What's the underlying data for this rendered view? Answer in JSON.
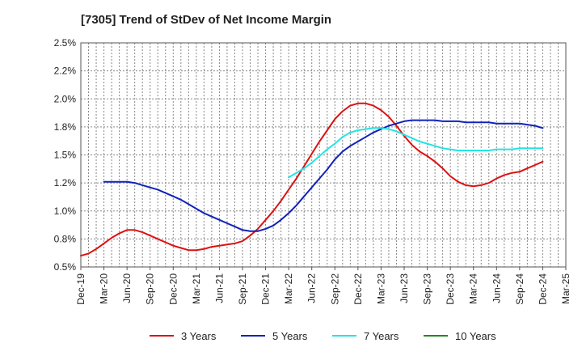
{
  "chart_data": {
    "type": "line",
    "title": "[7305]  Trend of StDev of Net Income Margin",
    "xlabel": "",
    "ylabel": "",
    "ylim": [
      0.5,
      2.5
    ],
    "y_ticks": [
      "2.5%",
      "2.2%",
      "2.0%",
      "1.8%",
      "1.5%",
      "1.2%",
      "1.0%",
      "0.8%",
      "0.5%"
    ],
    "y_tick_values": [
      2.5,
      2.25,
      2.0,
      1.75,
      1.5,
      1.25,
      1.0,
      0.75,
      0.5
    ],
    "x_ticks": [
      "Dec-19",
      "Mar-20",
      "Jun-20",
      "Sep-20",
      "Dec-20",
      "Mar-21",
      "Jun-21",
      "Sep-21",
      "Dec-21",
      "Mar-22",
      "Jun-22",
      "Sep-22",
      "Dec-22",
      "Mar-23",
      "Jun-23",
      "Sep-23",
      "Dec-23",
      "Mar-24",
      "Jun-24",
      "Sep-24",
      "Dec-24",
      "Mar-25"
    ],
    "grid": true,
    "legend_position": "bottom",
    "series": [
      {
        "name": "3 Years",
        "color": "#dd1111",
        "points": [
          [
            "Dec-19",
            0.6
          ],
          [
            "Jan-20",
            0.62
          ],
          [
            "Feb-20",
            0.66
          ],
          [
            "Mar-20",
            0.71
          ],
          [
            "Apr-20",
            0.76
          ],
          [
            "May-20",
            0.8
          ],
          [
            "Jun-20",
            0.83
          ],
          [
            "Jul-20",
            0.83
          ],
          [
            "Aug-20",
            0.81
          ],
          [
            "Sep-20",
            0.78
          ],
          [
            "Oct-20",
            0.75
          ],
          [
            "Nov-20",
            0.72
          ],
          [
            "Dec-20",
            0.69
          ],
          [
            "Jan-21",
            0.67
          ],
          [
            "Feb-21",
            0.65
          ],
          [
            "Mar-21",
            0.65
          ],
          [
            "Apr-21",
            0.66
          ],
          [
            "May-21",
            0.68
          ],
          [
            "Jun-21",
            0.69
          ],
          [
            "Jul-21",
            0.7
          ],
          [
            "Aug-21",
            0.71
          ],
          [
            "Sep-21",
            0.73
          ],
          [
            "Oct-21",
            0.78
          ],
          [
            "Nov-21",
            0.84
          ],
          [
            "Dec-21",
            0.92
          ],
          [
            "Jan-22",
            1.0
          ],
          [
            "Feb-22",
            1.09
          ],
          [
            "Mar-22",
            1.19
          ],
          [
            "Apr-22",
            1.29
          ],
          [
            "May-22",
            1.4
          ],
          [
            "Jun-22",
            1.51
          ],
          [
            "Jul-22",
            1.62
          ],
          [
            "Aug-22",
            1.72
          ],
          [
            "Sep-22",
            1.82
          ],
          [
            "Oct-22",
            1.89
          ],
          [
            "Nov-22",
            1.94
          ],
          [
            "Dec-22",
            1.96
          ],
          [
            "Jan-23",
            1.96
          ],
          [
            "Feb-23",
            1.94
          ],
          [
            "Mar-23",
            1.9
          ],
          [
            "Apr-23",
            1.84
          ],
          [
            "May-23",
            1.76
          ],
          [
            "Jun-23",
            1.67
          ],
          [
            "Jul-23",
            1.59
          ],
          [
            "Aug-23",
            1.53
          ],
          [
            "Sep-23",
            1.49
          ],
          [
            "Oct-23",
            1.44
          ],
          [
            "Nov-23",
            1.38
          ],
          [
            "Dec-23",
            1.31
          ],
          [
            "Jan-24",
            1.26
          ],
          [
            "Feb-24",
            1.23
          ],
          [
            "Mar-24",
            1.22
          ],
          [
            "Apr-24",
            1.23
          ],
          [
            "May-24",
            1.25
          ],
          [
            "Jun-24",
            1.29
          ],
          [
            "Jul-24",
            1.32
          ],
          [
            "Aug-24",
            1.34
          ],
          [
            "Sep-24",
            1.35
          ],
          [
            "Oct-24",
            1.38
          ],
          [
            "Nov-24",
            1.41
          ],
          [
            "Dec-24",
            1.44
          ]
        ]
      },
      {
        "name": "5 Years",
        "color": "#1122bb",
        "points": [
          [
            "Mar-20",
            1.26
          ],
          [
            "Apr-20",
            1.26
          ],
          [
            "May-20",
            1.26
          ],
          [
            "Jun-20",
            1.26
          ],
          [
            "Jul-20",
            1.25
          ],
          [
            "Aug-20",
            1.23
          ],
          [
            "Sep-20",
            1.21
          ],
          [
            "Oct-20",
            1.19
          ],
          [
            "Nov-20",
            1.16
          ],
          [
            "Dec-20",
            1.13
          ],
          [
            "Jan-21",
            1.1
          ],
          [
            "Feb-21",
            1.06
          ],
          [
            "Mar-21",
            1.02
          ],
          [
            "Apr-21",
            0.98
          ],
          [
            "May-21",
            0.95
          ],
          [
            "Jun-21",
            0.92
          ],
          [
            "Jul-21",
            0.89
          ],
          [
            "Aug-21",
            0.86
          ],
          [
            "Sep-21",
            0.83
          ],
          [
            "Oct-21",
            0.82
          ],
          [
            "Nov-21",
            0.82
          ],
          [
            "Dec-21",
            0.84
          ],
          [
            "Jan-22",
            0.87
          ],
          [
            "Feb-22",
            0.92
          ],
          [
            "Mar-22",
            0.98
          ],
          [
            "Apr-22",
            1.05
          ],
          [
            "May-22",
            1.13
          ],
          [
            "Jun-22",
            1.21
          ],
          [
            "Jul-22",
            1.29
          ],
          [
            "Aug-22",
            1.37
          ],
          [
            "Sep-22",
            1.46
          ],
          [
            "Oct-22",
            1.53
          ],
          [
            "Nov-22",
            1.58
          ],
          [
            "Dec-22",
            1.62
          ],
          [
            "Jan-23",
            1.66
          ],
          [
            "Feb-23",
            1.7
          ],
          [
            "Mar-23",
            1.73
          ],
          [
            "Apr-23",
            1.76
          ],
          [
            "May-23",
            1.78
          ],
          [
            "Jun-23",
            1.8
          ],
          [
            "Jul-23",
            1.81
          ],
          [
            "Aug-23",
            1.81
          ],
          [
            "Sep-23",
            1.81
          ],
          [
            "Oct-23",
            1.81
          ],
          [
            "Nov-23",
            1.8
          ],
          [
            "Dec-23",
            1.8
          ],
          [
            "Jan-24",
            1.8
          ],
          [
            "Feb-24",
            1.79
          ],
          [
            "Mar-24",
            1.79
          ],
          [
            "Apr-24",
            1.79
          ],
          [
            "May-24",
            1.79
          ],
          [
            "Jun-24",
            1.78
          ],
          [
            "Jul-24",
            1.78
          ],
          [
            "Aug-24",
            1.78
          ],
          [
            "Sep-24",
            1.78
          ],
          [
            "Oct-24",
            1.77
          ],
          [
            "Nov-24",
            1.76
          ],
          [
            "Dec-24",
            1.74
          ]
        ]
      },
      {
        "name": "7 Years",
        "color": "#22e5e5",
        "points": [
          [
            "Mar-22",
            1.3
          ],
          [
            "Apr-22",
            1.34
          ],
          [
            "May-22",
            1.38
          ],
          [
            "Jun-22",
            1.43
          ],
          [
            "Jul-22",
            1.49
          ],
          [
            "Aug-22",
            1.55
          ],
          [
            "Sep-22",
            1.6
          ],
          [
            "Oct-22",
            1.66
          ],
          [
            "Nov-22",
            1.7
          ],
          [
            "Dec-22",
            1.72
          ],
          [
            "Jan-23",
            1.73
          ],
          [
            "Feb-23",
            1.74
          ],
          [
            "Mar-23",
            1.74
          ],
          [
            "Apr-23",
            1.73
          ],
          [
            "May-23",
            1.71
          ],
          [
            "Jun-23",
            1.68
          ],
          [
            "Jul-23",
            1.65
          ],
          [
            "Aug-23",
            1.62
          ],
          [
            "Sep-23",
            1.6
          ],
          [
            "Oct-23",
            1.58
          ],
          [
            "Nov-23",
            1.56
          ],
          [
            "Dec-23",
            1.55
          ],
          [
            "Jan-24",
            1.54
          ],
          [
            "Feb-24",
            1.54
          ],
          [
            "Mar-24",
            1.54
          ],
          [
            "Apr-24",
            1.54
          ],
          [
            "May-24",
            1.54
          ],
          [
            "Jun-24",
            1.55
          ],
          [
            "Jul-24",
            1.55
          ],
          [
            "Aug-24",
            1.55
          ],
          [
            "Sep-24",
            1.56
          ],
          [
            "Oct-24",
            1.56
          ],
          [
            "Nov-24",
            1.56
          ],
          [
            "Dec-24",
            1.56
          ]
        ]
      },
      {
        "name": "10 Years",
        "color": "#228822",
        "points": []
      }
    ]
  }
}
